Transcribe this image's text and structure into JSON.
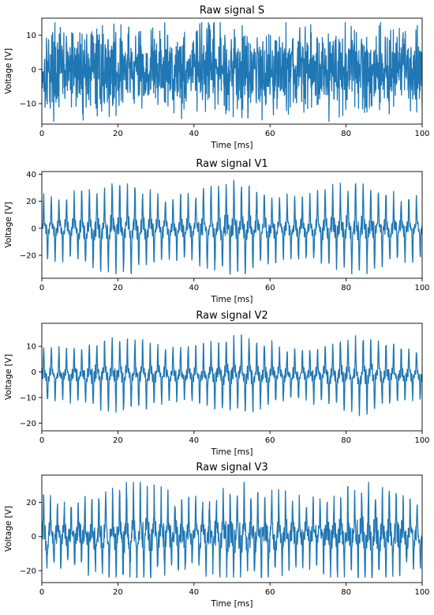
{
  "chart_data": [
    {
      "type": "line",
      "title": "Raw signal S",
      "xlabel": "Time [ms]",
      "ylabel": "Voltage [V]",
      "xlim": [
        0,
        100
      ],
      "ylim": [
        -16,
        15
      ],
      "xticks": [
        0,
        20,
        40,
        60,
        80,
        100
      ],
      "yticks": [
        -10,
        0,
        10
      ],
      "grid": false,
      "color": "#1f77b4",
      "signal": {
        "style": "noise",
        "amplitude": 6,
        "peak_max": 13.8,
        "peak_min": -15.3,
        "cycles": 0,
        "mean": 0
      }
    },
    {
      "type": "line",
      "title": "Raw signal V1",
      "xlabel": "Time [ms]",
      "ylabel": "Voltage [V]",
      "xlim": [
        0,
        100
      ],
      "ylim": [
        -37,
        42
      ],
      "xticks": [
        0,
        20,
        40,
        60,
        80,
        100
      ],
      "yticks": [
        -20,
        0,
        20,
        40
      ],
      "grid": false,
      "color": "#1f77b4",
      "signal": {
        "style": "oscillation",
        "amplitude": 32,
        "peak_max": 38,
        "peak_min": -34,
        "cycles": 50,
        "mean": 0
      }
    },
    {
      "type": "line",
      "title": "Raw signal V2",
      "xlabel": "Time [ms]",
      "ylabel": "Voltage [V]",
      "xlim": [
        0,
        100
      ],
      "ylim": [
        -23,
        19
      ],
      "xticks": [
        0,
        20,
        40,
        60,
        80,
        100
      ],
      "yticks": [
        -20,
        -10,
        0,
        10
      ],
      "grid": false,
      "color": "#1f77b4",
      "signal": {
        "style": "oscillation",
        "amplitude": 14,
        "peak_max": 17,
        "peak_min": -21,
        "cycles": 50,
        "mean": -1
      }
    },
    {
      "type": "line",
      "title": "Raw signal V3",
      "xlabel": "Time [ms]",
      "ylabel": "Voltage [V]",
      "xlim": [
        0,
        100
      ],
      "ylim": [
        -27,
        36
      ],
      "xticks": [
        0,
        20,
        40,
        60,
        80,
        100
      ],
      "yticks": [
        -20,
        0,
        20
      ],
      "grid": false,
      "color": "#1f77b4",
      "signal": {
        "style": "oscillation_dense",
        "amplitude": 27,
        "peak_max": 32,
        "peak_min": -24,
        "cycles": 55,
        "mean": 1
      }
    }
  ]
}
